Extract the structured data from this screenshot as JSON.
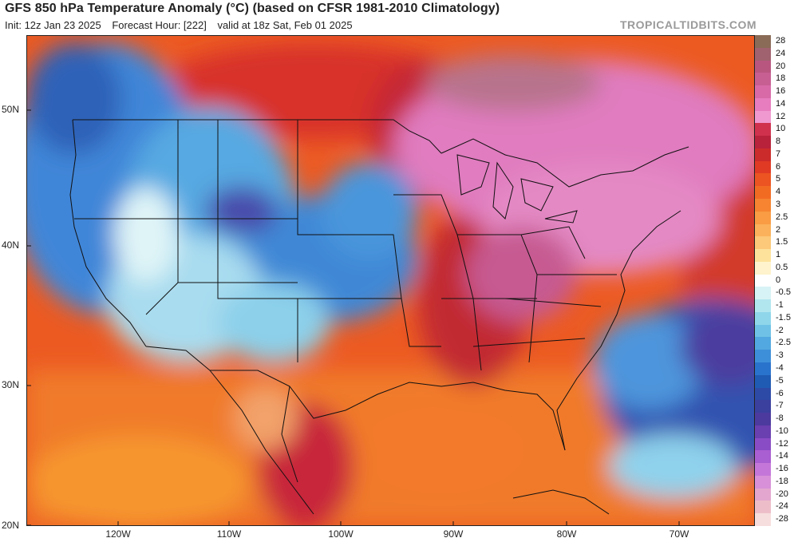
{
  "header": {
    "title": "GFS 850 hPa Temperature Anomaly (°C) (based on CFSR 1981-2010 Climatology)",
    "init": "Init: 12z Jan 23 2025",
    "forecast_hour": "Forecast Hour: [222]",
    "valid": "valid at 18z Sat, Feb 01 2025",
    "brand": "TROPICALTIDBITS.COM"
  },
  "axes": {
    "lat_labels": [
      "50N",
      "40N",
      "30N",
      "20N"
    ],
    "lon_labels": [
      "120W",
      "110W",
      "100W",
      "90W",
      "80W",
      "70W"
    ]
  },
  "legend": {
    "entries": [
      {
        "label": "28",
        "color": "#8a6b57"
      },
      {
        "label": "24",
        "color": "#a0626e"
      },
      {
        "label": "20",
        "color": "#b95680"
      },
      {
        "label": "18",
        "color": "#c75f93"
      },
      {
        "label": "16",
        "color": "#d86aa8"
      },
      {
        "label": "14",
        "color": "#e77cbe"
      },
      {
        "label": "12",
        "color": "#f099d0"
      },
      {
        "label": "10",
        "color": "#d0324e"
      },
      {
        "label": "8",
        "color": "#b8223a"
      },
      {
        "label": "7",
        "color": "#cc2b2b"
      },
      {
        "label": "6",
        "color": "#e03a24"
      },
      {
        "label": "5",
        "color": "#ec5421"
      },
      {
        "label": "4",
        "color": "#f26b23"
      },
      {
        "label": "3",
        "color": "#f68430"
      },
      {
        "label": "2.5",
        "color": "#f99c44"
      },
      {
        "label": "2",
        "color": "#fbb15b"
      },
      {
        "label": "1.5",
        "color": "#fcc879"
      },
      {
        "label": "1",
        "color": "#fde29c"
      },
      {
        "label": "0.5",
        "color": "#fef3cc"
      },
      {
        "label": "0",
        "color": "#ffffff"
      },
      {
        "label": "-0.5",
        "color": "#d8f3f5"
      },
      {
        "label": "-1",
        "color": "#b2e6ef"
      },
      {
        "label": "-1.5",
        "color": "#8fd6ea"
      },
      {
        "label": "-2",
        "color": "#6fc2e6"
      },
      {
        "label": "-2.5",
        "color": "#52a8e0"
      },
      {
        "label": "-3",
        "color": "#3e8fd9"
      },
      {
        "label": "-4",
        "color": "#2a73cc"
      },
      {
        "label": "-5",
        "color": "#1f5bb3"
      },
      {
        "label": "-6",
        "color": "#2d4aa6"
      },
      {
        "label": "-7",
        "color": "#3b3f9e"
      },
      {
        "label": "-8",
        "color": "#4c3a9e"
      },
      {
        "label": "-10",
        "color": "#6a3fb0"
      },
      {
        "label": "-12",
        "color": "#8a4cc4"
      },
      {
        "label": "-14",
        "color": "#a95ed1"
      },
      {
        "label": "-16",
        "color": "#c577d9"
      },
      {
        "label": "-18",
        "color": "#d890d8"
      },
      {
        "label": "-20",
        "color": "#e3a6cf"
      },
      {
        "label": "-24",
        "color": "#edbec9"
      },
      {
        "label": "-28",
        "color": "#f7dede"
      }
    ]
  }
}
